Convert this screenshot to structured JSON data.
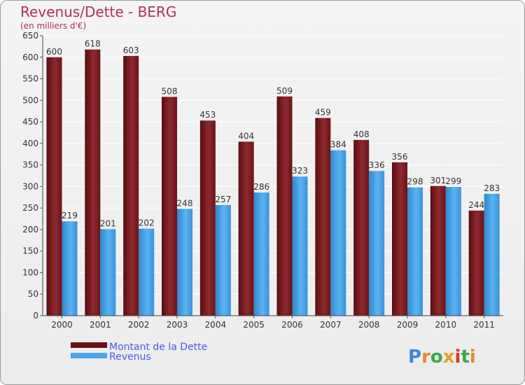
{
  "chart_data": {
    "type": "bar",
    "title": "Revenus/Dette - BERG",
    "subtitle": "(en milliers d'€)",
    "categories": [
      "2000",
      "2001",
      "2002",
      "2003",
      "2004",
      "2005",
      "2006",
      "2007",
      "2008",
      "2009",
      "2010",
      "2011"
    ],
    "series": [
      {
        "name": "Montant de la Dette",
        "color": "#7a1e22",
        "values": [
          600,
          618,
          603,
          508,
          453,
          404,
          509,
          459,
          408,
          356,
          301,
          244
        ]
      },
      {
        "name": "Revenus",
        "color": "#4aa3e8",
        "values": [
          219,
          201,
          202,
          248,
          257,
          286,
          323,
          384,
          336,
          298,
          299,
          283
        ]
      }
    ],
    "yticks": [
      0,
      50,
      100,
      150,
      200,
      250,
      300,
      350,
      400,
      450,
      500,
      550,
      600,
      650
    ],
    "ylim": [
      0,
      650
    ],
    "grid": true,
    "legend_position": "bottom-left"
  },
  "logo": {
    "text": "Proxiti"
  }
}
